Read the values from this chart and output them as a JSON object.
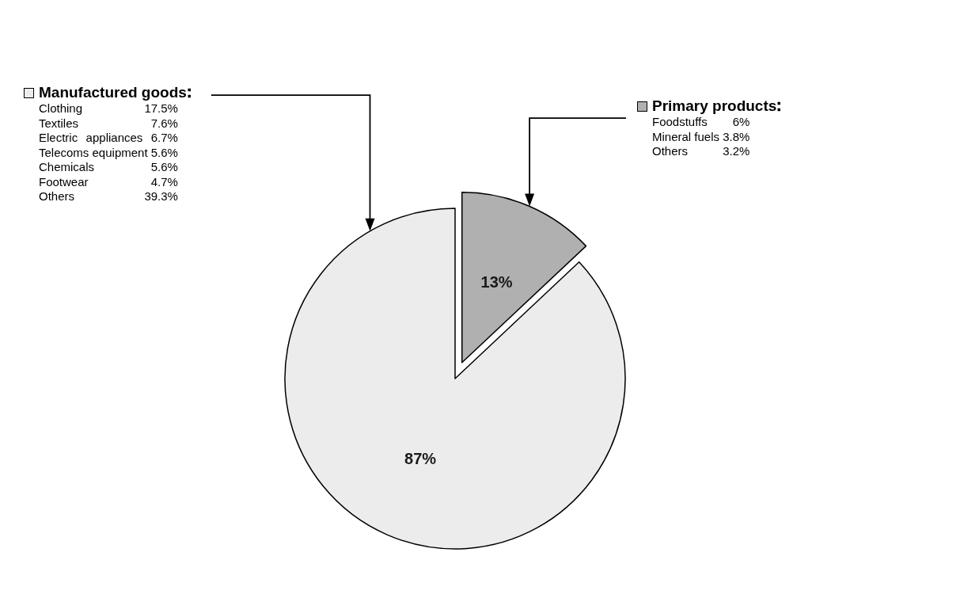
{
  "chart_data": {
    "type": "pie",
    "categories": [
      "Manufactured goods",
      "Primary products"
    ],
    "values": [
      87,
      13
    ],
    "value_labels": [
      "87%",
      "13%"
    ],
    "colors": [
      "#ececec",
      "#b0b0b0"
    ],
    "legend": "top",
    "annotations": [
      {
        "text": "Clothing 17.5%",
        "x": "Manufactured goods"
      },
      {
        "text": "Textiles 7.6%",
        "x": "Manufactured goods"
      },
      {
        "text": "Electric appliances 6.7%",
        "x": "Manufactured goods"
      },
      {
        "text": "Telecoms equipment 5.6%",
        "x": "Manufactured goods"
      },
      {
        "text": "Chemicals 5.6%",
        "x": "Manufactured goods"
      },
      {
        "text": "Footwear 4.7%",
        "x": "Manufactured goods"
      },
      {
        "text": "Others 39.3%",
        "x": "Manufactured goods"
      },
      {
        "text": "Foodstuffs 6%",
        "x": "Primary products"
      },
      {
        "text": "Mineral fuels 3.8%",
        "x": "Primary products"
      },
      {
        "text": "Others 3.2%",
        "x": "Primary products"
      }
    ]
  }
}
